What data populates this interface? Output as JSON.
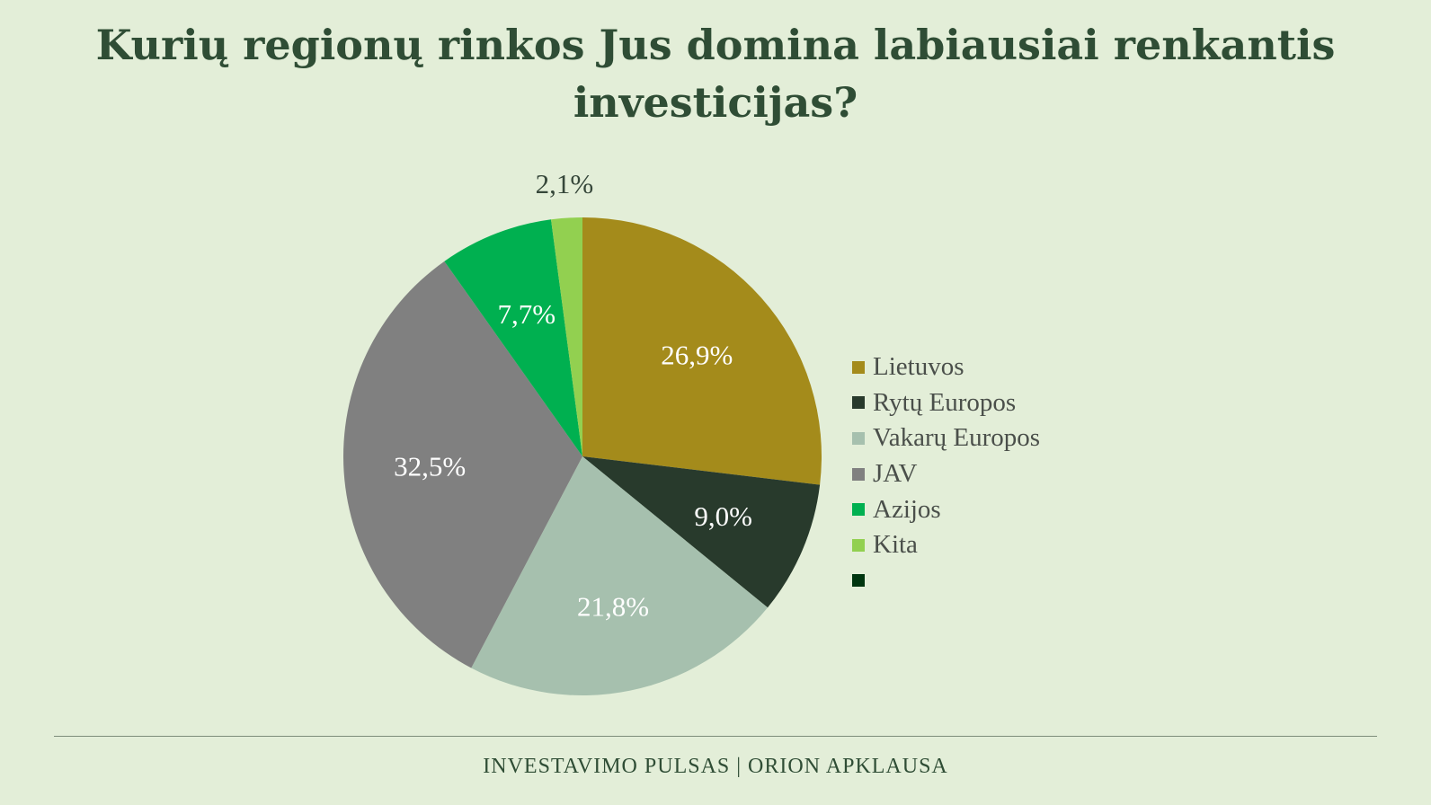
{
  "title_lines": [
    "Kurių regionų rinkos Jus domina labiausiai renkantis",
    "investicijas?"
  ],
  "footer": "INVESTAVIMO PULSAS | ORION APKLAUSA",
  "chart_data": {
    "type": "pie",
    "title": "Kurių regionų rinkos Jus domina labiausiai renkantis investicijas?",
    "legend_position": "right",
    "start": "top, clockwise",
    "series": [
      {
        "name": "Lietuvos",
        "value": 26.9,
        "label": "26,9%",
        "color": "#a48b1b",
        "label_color": "#ffffff"
      },
      {
        "name": "Rytų Europos",
        "value": 9.0,
        "label": "9,0%",
        "color": "#283a2c",
        "label_color": "#ffffff"
      },
      {
        "name": "Vakarų Europos",
        "value": 21.8,
        "label": "21,8%",
        "color": "#a6c0ae",
        "label_color": "#ffffff"
      },
      {
        "name": "JAV",
        "value": 32.5,
        "label": "32,5%",
        "color": "#808080",
        "label_color": "#ffffff"
      },
      {
        "name": "Azijos",
        "value": 7.7,
        "label": "7,7%",
        "color": "#00b050",
        "label_color": "#ffffff"
      },
      {
        "name": "Kita",
        "value": 2.1,
        "label": "2,1%",
        "color": "#92d050",
        "label_color": "#36473a"
      },
      {
        "name": "",
        "value": 0,
        "label": "",
        "color": "#00360f",
        "label_color": "#ffffff"
      }
    ]
  }
}
